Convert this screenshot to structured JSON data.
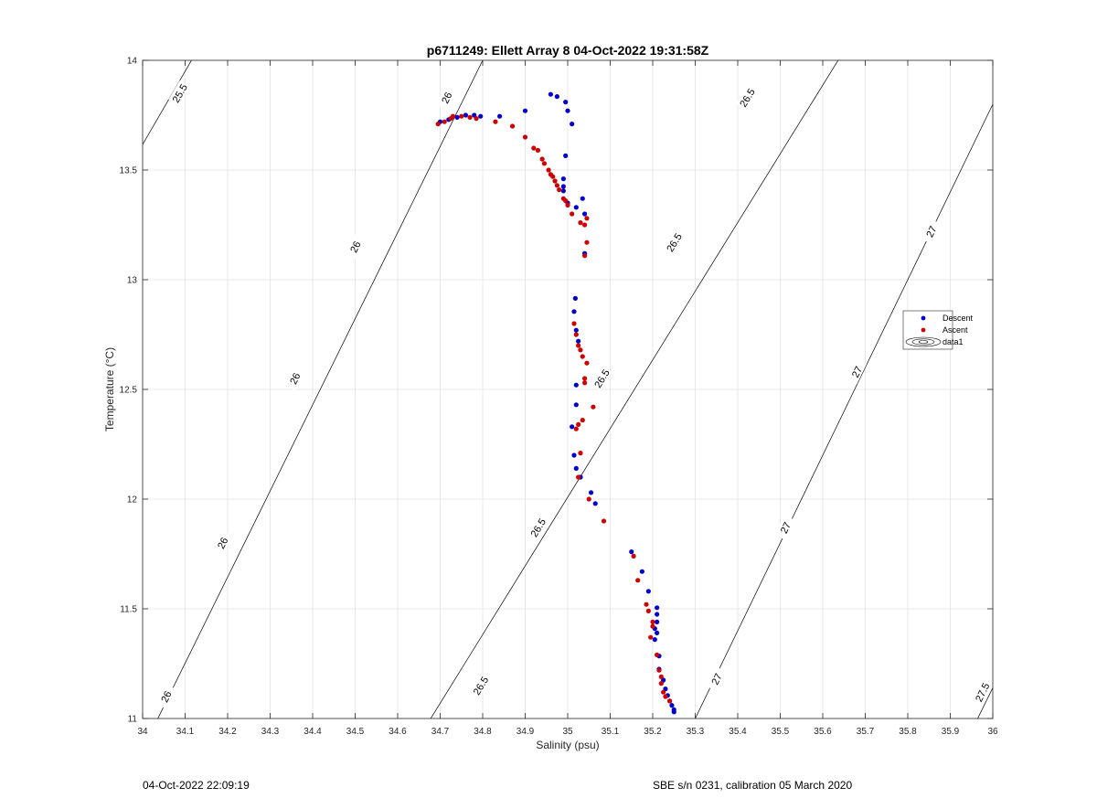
{
  "chart_data": {
    "type": "scatter",
    "title": "p6711249: Ellett Array 8 04-Oct-2022 19:31:58Z",
    "xlabel": "Salinity (psu)",
    "ylabel": "Temperature (°C)",
    "xlim": [
      34,
      36
    ],
    "ylim": [
      11,
      14
    ],
    "xticks": [
      "34",
      "34.1",
      "34.2",
      "34.3",
      "34.4",
      "34.5",
      "34.6",
      "34.7",
      "34.8",
      "34.9",
      "35",
      "35.1",
      "35.2",
      "35.3",
      "35.4",
      "35.5",
      "35.6",
      "35.7",
      "35.8",
      "35.9",
      "36"
    ],
    "yticks": [
      "11",
      "11.5",
      "12",
      "12.5",
      "13",
      "13.5",
      "14"
    ],
    "grid": true,
    "legend_position": "right",
    "series": [
      {
        "name": "Descent",
        "color": "#0000cc",
        "points": [
          [
            34.7,
            13.72
          ],
          [
            34.72,
            13.73
          ],
          [
            34.74,
            13.74
          ],
          [
            34.76,
            13.75
          ],
          [
            34.78,
            13.75
          ],
          [
            34.795,
            13.745
          ],
          [
            34.84,
            13.745
          ],
          [
            34.9,
            13.77
          ],
          [
            34.96,
            13.845
          ],
          [
            34.975,
            13.835
          ],
          [
            34.995,
            13.81
          ],
          [
            35.0,
            13.77
          ],
          [
            35.01,
            13.71
          ],
          [
            34.995,
            13.565
          ],
          [
            34.99,
            13.46
          ],
          [
            34.99,
            13.425
          ],
          [
            34.99,
            13.405
          ],
          [
            35.0,
            13.35
          ],
          [
            35.035,
            13.37
          ],
          [
            35.02,
            13.33
          ],
          [
            35.04,
            13.3
          ],
          [
            35.04,
            13.12
          ],
          [
            35.018,
            12.915
          ],
          [
            35.015,
            12.855
          ],
          [
            35.02,
            12.77
          ],
          [
            35.025,
            12.72
          ],
          [
            35.02,
            12.52
          ],
          [
            35.02,
            12.43
          ],
          [
            35.01,
            12.33
          ],
          [
            35.015,
            12.2
          ],
          [
            35.02,
            12.14
          ],
          [
            35.03,
            12.1
          ],
          [
            35.055,
            12.03
          ],
          [
            35.065,
            11.98
          ],
          [
            35.15,
            11.76
          ],
          [
            35.175,
            11.67
          ],
          [
            35.19,
            11.58
          ],
          [
            35.21,
            11.505
          ],
          [
            35.21,
            11.475
          ],
          [
            35.21,
            11.44
          ],
          [
            35.205,
            11.41
          ],
          [
            35.21,
            11.39
          ],
          [
            35.205,
            11.36
          ],
          [
            35.215,
            11.285
          ],
          [
            35.215,
            11.225
          ],
          [
            35.225,
            11.175
          ],
          [
            35.23,
            11.135
          ],
          [
            35.235,
            11.105
          ],
          [
            35.24,
            11.08
          ],
          [
            35.245,
            11.06
          ],
          [
            35.25,
            11.04
          ],
          [
            35.25,
            11.03
          ]
        ]
      },
      {
        "name": "Ascent",
        "color": "#cc0000",
        "points": [
          [
            34.695,
            13.71
          ],
          [
            34.71,
            13.72
          ],
          [
            34.725,
            13.735
          ],
          [
            34.73,
            13.745
          ],
          [
            34.75,
            13.745
          ],
          [
            34.77,
            13.74
          ],
          [
            34.785,
            13.735
          ],
          [
            34.83,
            13.72
          ],
          [
            34.87,
            13.7
          ],
          [
            34.9,
            13.65
          ],
          [
            34.92,
            13.6
          ],
          [
            34.93,
            13.59
          ],
          [
            34.94,
            13.55
          ],
          [
            34.945,
            13.53
          ],
          [
            34.955,
            13.5
          ],
          [
            34.96,
            13.48
          ],
          [
            34.965,
            13.47
          ],
          [
            34.97,
            13.45
          ],
          [
            34.975,
            13.43
          ],
          [
            34.98,
            13.41
          ],
          [
            34.99,
            13.37
          ],
          [
            34.995,
            13.36
          ],
          [
            35.0,
            13.34
          ],
          [
            35.01,
            13.3
          ],
          [
            35.03,
            13.26
          ],
          [
            35.04,
            13.25
          ],
          [
            35.045,
            13.28
          ],
          [
            35.045,
            13.17
          ],
          [
            35.04,
            13.11
          ],
          [
            35.015,
            12.8
          ],
          [
            35.02,
            12.75
          ],
          [
            35.025,
            12.7
          ],
          [
            35.03,
            12.68
          ],
          [
            35.035,
            12.65
          ],
          [
            35.045,
            12.62
          ],
          [
            35.04,
            12.55
          ],
          [
            35.04,
            12.53
          ],
          [
            35.06,
            12.42
          ],
          [
            35.035,
            12.36
          ],
          [
            35.025,
            12.34
          ],
          [
            35.02,
            12.32
          ],
          [
            35.03,
            12.21
          ],
          [
            35.025,
            12.1
          ],
          [
            35.05,
            12.0
          ],
          [
            35.085,
            11.9
          ],
          [
            35.155,
            11.74
          ],
          [
            35.165,
            11.63
          ],
          [
            35.185,
            11.52
          ],
          [
            35.19,
            11.49
          ],
          [
            35.2,
            11.44
          ],
          [
            35.2,
            11.42
          ],
          [
            35.195,
            11.37
          ],
          [
            35.21,
            11.29
          ],
          [
            35.215,
            11.22
          ],
          [
            35.22,
            11.19
          ],
          [
            35.22,
            11.16
          ],
          [
            35.225,
            11.12
          ],
          [
            35.23,
            11.1
          ],
          [
            35.24,
            11.08
          ]
        ]
      }
    ],
    "legend": [
      {
        "label": "Descent",
        "marker": "dot",
        "color": "#0000cc"
      },
      {
        "label": "Ascent",
        "marker": "dot",
        "color": "#cc0000"
      },
      {
        "label": "data1",
        "marker": "contour",
        "color": "#000000"
      }
    ],
    "contours": [
      {
        "level": "25.5",
        "line": [
          [
            33.9,
            13.283
          ],
          [
            34.3,
            14.617
          ]
        ]
      },
      {
        "level": "26",
        "line": [
          [
            33.9,
            10.467
          ],
          [
            34.8,
            14.0
          ]
        ]
      },
      {
        "level": "26.5",
        "line": [
          [
            34.55,
            10.6
          ],
          [
            35.7,
            14.2
          ]
        ]
      },
      {
        "level": "27",
        "line": [
          [
            35.2,
            10.6
          ],
          [
            36.1,
            14.2
          ]
        ]
      },
      {
        "level": "27.5",
        "line": [
          [
            35.85,
            10.55
          ],
          [
            36.1,
            11.533
          ]
        ]
      }
    ],
    "contour_labels": [
      {
        "text": "25.5",
        "s": 34.087,
        "t": 13.85
      },
      {
        "text": "26",
        "s": 34.715,
        "t": 13.83
      },
      {
        "text": "26",
        "s": 34.5,
        "t": 13.15
      },
      {
        "text": "26",
        "s": 34.358,
        "t": 12.55
      },
      {
        "text": "26",
        "s": 34.188,
        "t": 11.8
      },
      {
        "text": "26",
        "s": 34.055,
        "t": 11.1
      },
      {
        "text": "26.5",
        "s": 35.422,
        "t": 13.83
      },
      {
        "text": "26.5",
        "s": 35.25,
        "t": 13.17
      },
      {
        "text": "26.5",
        "s": 35.08,
        "t": 12.55
      },
      {
        "text": "26.5",
        "s": 34.93,
        "t": 11.87
      },
      {
        "text": "26.5",
        "s": 34.795,
        "t": 11.15
      },
      {
        "text": "27",
        "s": 35.855,
        "t": 13.22
      },
      {
        "text": "27",
        "s": 35.68,
        "t": 12.58
      },
      {
        "text": "27",
        "s": 35.512,
        "t": 11.87
      },
      {
        "text": "27",
        "s": 35.35,
        "t": 11.18
      },
      {
        "text": "27.5",
        "s": 35.975,
        "t": 11.12
      }
    ]
  },
  "footer": {
    "generated": "04-Oct-2022 22:09:19",
    "instrument": "SBE s/n 0231, calibration 05 March 2020"
  }
}
